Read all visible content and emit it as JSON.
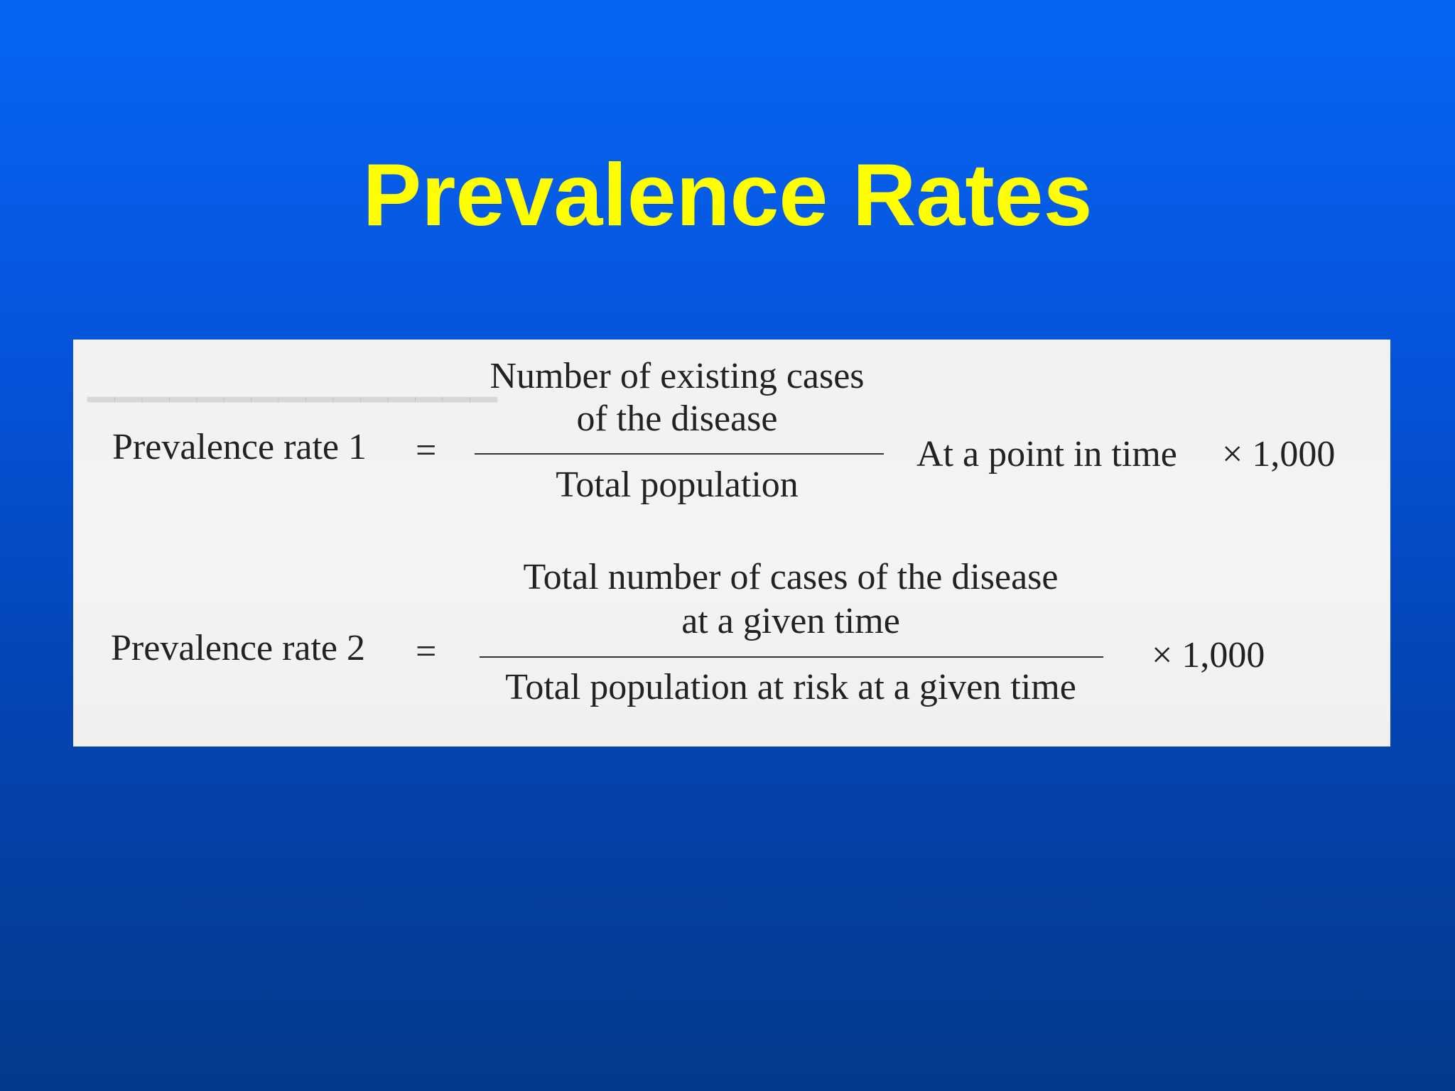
{
  "slide": {
    "title": "Prevalence Rates"
  },
  "formulas": [
    {
      "label": "Prevalence rate 1",
      "equals": "=",
      "numerator_line1": "Number of existing cases",
      "numerator_line2": "of the disease",
      "denominator": "Total population",
      "qualifier": "At a point in time",
      "multiplier": "× 1,000"
    },
    {
      "label": "Prevalence rate 2",
      "equals": "=",
      "numerator_line1": "Total number of cases of the disease",
      "numerator_line2": "at a given time",
      "denominator": "Total population at risk at a given time",
      "multiplier": "× 1,000"
    }
  ]
}
